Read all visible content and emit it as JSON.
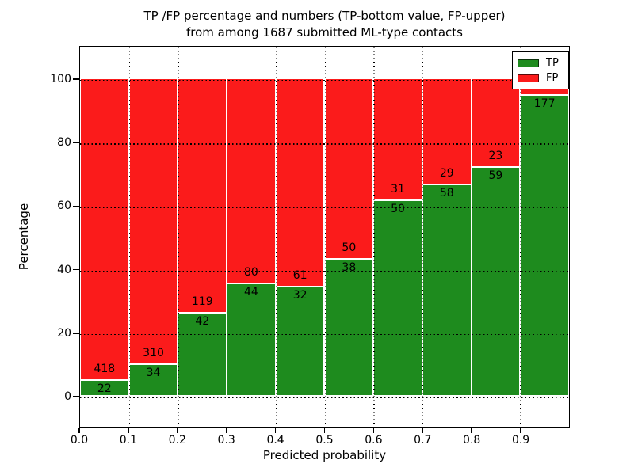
{
  "chart_data": {
    "type": "bar",
    "stacked": true,
    "normalized_to_percent": true,
    "title_line1": "TP /FP percentage and numbers (TP-bottom value, FP-upper)",
    "title_line2": "from among 1687 submitted ML-type contacts",
    "xlabel": "Predicted probability",
    "ylabel": "Percentage",
    "xlim": [
      0.0,
      1.0
    ],
    "ylim": [
      -10,
      110
    ],
    "grid": "dotted black, on",
    "colors": {
      "tp": "#1e8b1e",
      "fp": "#fb1b1b"
    },
    "legend": {
      "position": "upper right",
      "entries": [
        {
          "label": "TP",
          "color": "#1e8b1e"
        },
        {
          "label": "FP",
          "color": "#fb1b1b"
        }
      ]
    },
    "axes": {
      "yticks": [
        0,
        20,
        40,
        60,
        80,
        100
      ],
      "xticks": [
        "0.0",
        "0.1",
        "0.2",
        "0.3",
        "0.4",
        "0.5",
        "0.6",
        "0.7",
        "0.8",
        "0.9"
      ]
    },
    "bars": [
      {
        "bin_start": 0.0,
        "tp": 22,
        "fp": 418,
        "tp_pct": 5.0
      },
      {
        "bin_start": 0.1,
        "tp": 34,
        "fp": 310,
        "tp_pct": 9.9
      },
      {
        "bin_start": 0.2,
        "tp": 42,
        "fp": 119,
        "tp_pct": 26.1
      },
      {
        "bin_start": 0.3,
        "tp": 44,
        "fp": 80,
        "tp_pct": 35.5
      },
      {
        "bin_start": 0.4,
        "tp": 32,
        "fp": 61,
        "tp_pct": 34.4
      },
      {
        "bin_start": 0.5,
        "tp": 38,
        "fp": 50,
        "tp_pct": 43.2
      },
      {
        "bin_start": 0.6,
        "tp": 50,
        "fp": 31,
        "tp_pct": 61.7
      },
      {
        "bin_start": 0.7,
        "tp": 58,
        "fp": 29,
        "tp_pct": 66.7
      },
      {
        "bin_start": 0.8,
        "tp": 59,
        "fp": 23,
        "tp_pct": 72.0
      },
      {
        "bin_start": 0.9,
        "tp": 177,
        "fp": null,
        "tp_pct": 94.7,
        "fp_label_hidden_behind_legend": true
      }
    ]
  }
}
